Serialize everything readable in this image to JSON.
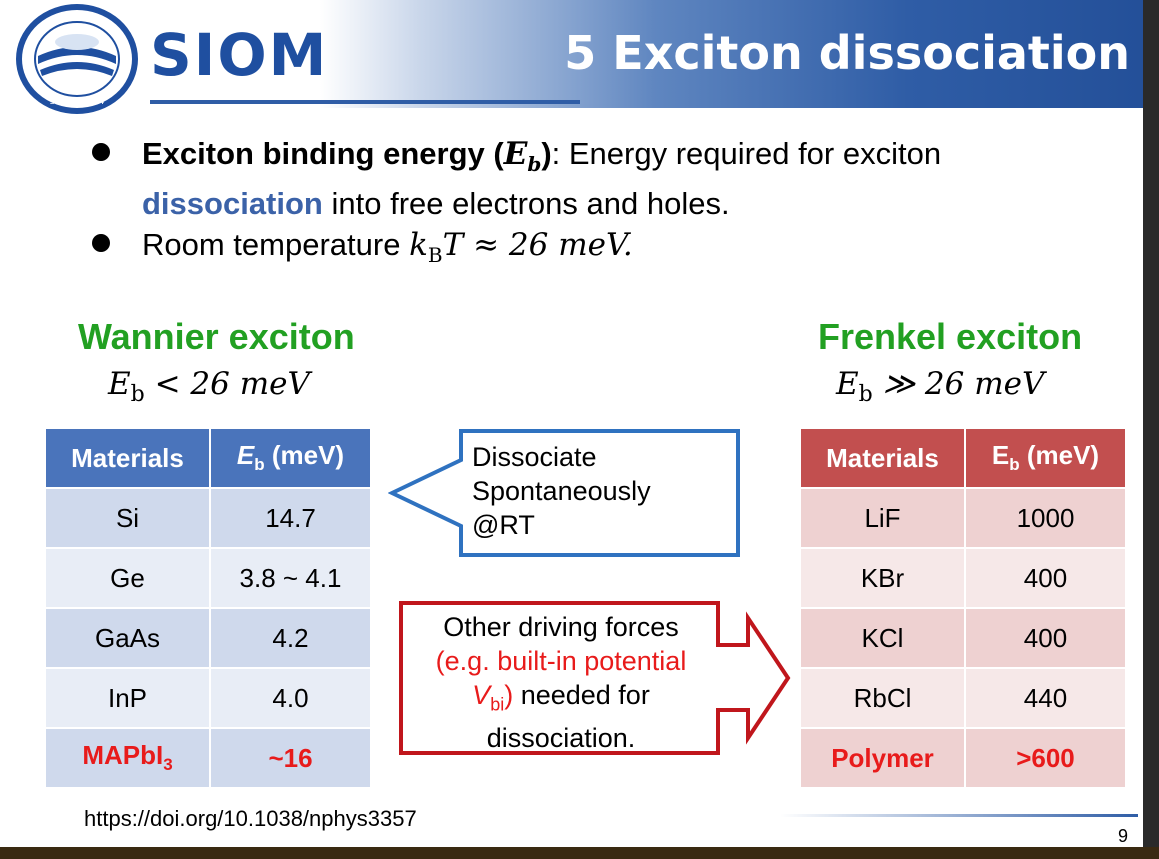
{
  "header": {
    "title": "5 Exciton dissociation",
    "logo_text": "SIOM",
    "seal_text": "中国科学院上海光学精密机械研究所 SIOM · 1964"
  },
  "bullets": [
    {
      "bold": "Exciton binding energy (",
      "bold_math": "E",
      "bold_sub": "b",
      "bold_close": ")",
      "text1": ": Energy required for exciton",
      "highlight": "dissociation",
      "text2": " into free electrons and holes."
    },
    {
      "text": "Room temperature ",
      "math": "k",
      "math_sub": "B",
      "math_rest": "T ≈ 26 meV."
    }
  ],
  "wannier": {
    "heading": "Wannier exciton",
    "eb_label": "E",
    "eb_sub": "b",
    "eb_relation": "< 26 meV",
    "table": {
      "col1": "Materials",
      "col2_main": "E",
      "col2_sub": "b",
      "col2_unit": " (meV)",
      "rows": [
        {
          "material": "Si",
          "value": "14.7"
        },
        {
          "material": "Ge",
          "value": "3.8 ~ 4.1"
        },
        {
          "material": "GaAs",
          "value": "4.2"
        },
        {
          "material": "InP",
          "value": "4.0"
        }
      ],
      "last_row": {
        "material_main": "MAPbI",
        "material_sub": "3",
        "value": "~16"
      }
    }
  },
  "frenkel": {
    "heading": "Frenkel exciton",
    "eb_label": "E",
    "eb_sub": "b",
    "eb_relation": "≫ 26 meV",
    "table": {
      "col1": "Materials",
      "col2_main": "E",
      "col2_sub": "b",
      "col2_unit": " (meV)",
      "rows": [
        {
          "material": "LiF",
          "value": "1000"
        },
        {
          "material": "KBr",
          "value": "400"
        },
        {
          "material": "KCl",
          "value": "400"
        },
        {
          "material": "RbCl",
          "value": "440"
        }
      ],
      "last_row": {
        "material": "Polymer",
        "value": ">600"
      }
    }
  },
  "callout_left": {
    "line1": "Dissociate",
    "line2": "Spontaneously",
    "line3": "@RT"
  },
  "callout_right": {
    "line1": "Other driving forces",
    "line2": "(e.g. built-in potential",
    "line3_red_main": "V",
    "line3_red_sub": "bi",
    "line3_red_close": ")",
    "line3_rest": " needed for",
    "line4": "dissociation."
  },
  "footer": {
    "doi": "https://doi.org/10.1038/nphys3357",
    "page": "9"
  },
  "colors": {
    "header_blue": "#2f5da6",
    "green": "#22a022",
    "table_blue": "#4a74bb",
    "table_red": "#c24f4f",
    "highlight_red": "#e81b1b"
  }
}
